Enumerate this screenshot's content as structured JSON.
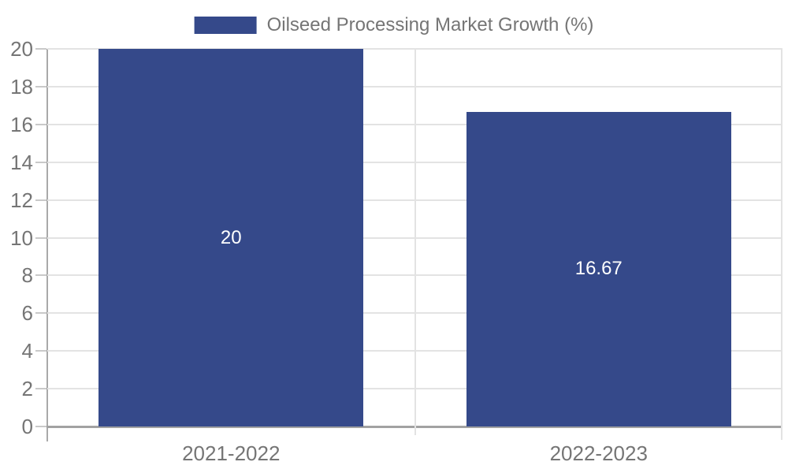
{
  "chart_data": {
    "type": "bar",
    "categories": [
      "2021-2022",
      "2022-2023"
    ],
    "series": [
      {
        "name": "Oilseed Processing Market Growth (%)",
        "values": [
          20,
          16.67
        ],
        "value_labels": [
          "20",
          "16.67"
        ]
      }
    ],
    "ylim": [
      0,
      20
    ],
    "yticks": [
      0,
      2,
      4,
      6,
      8,
      10,
      12,
      14,
      16,
      18,
      20
    ],
    "legend_position": "top",
    "grid": {
      "horizontal": true,
      "category_separators": true
    },
    "colors": {
      "bar": "#35498a",
      "axis_text": "#757575",
      "value_label_text": "#ffffff",
      "gridline": "#e3e3e3",
      "axis_line": "#a2a2a2",
      "spine": "#a9a9a9",
      "tick": "#c9c9c9",
      "background": "#ffffff"
    }
  }
}
